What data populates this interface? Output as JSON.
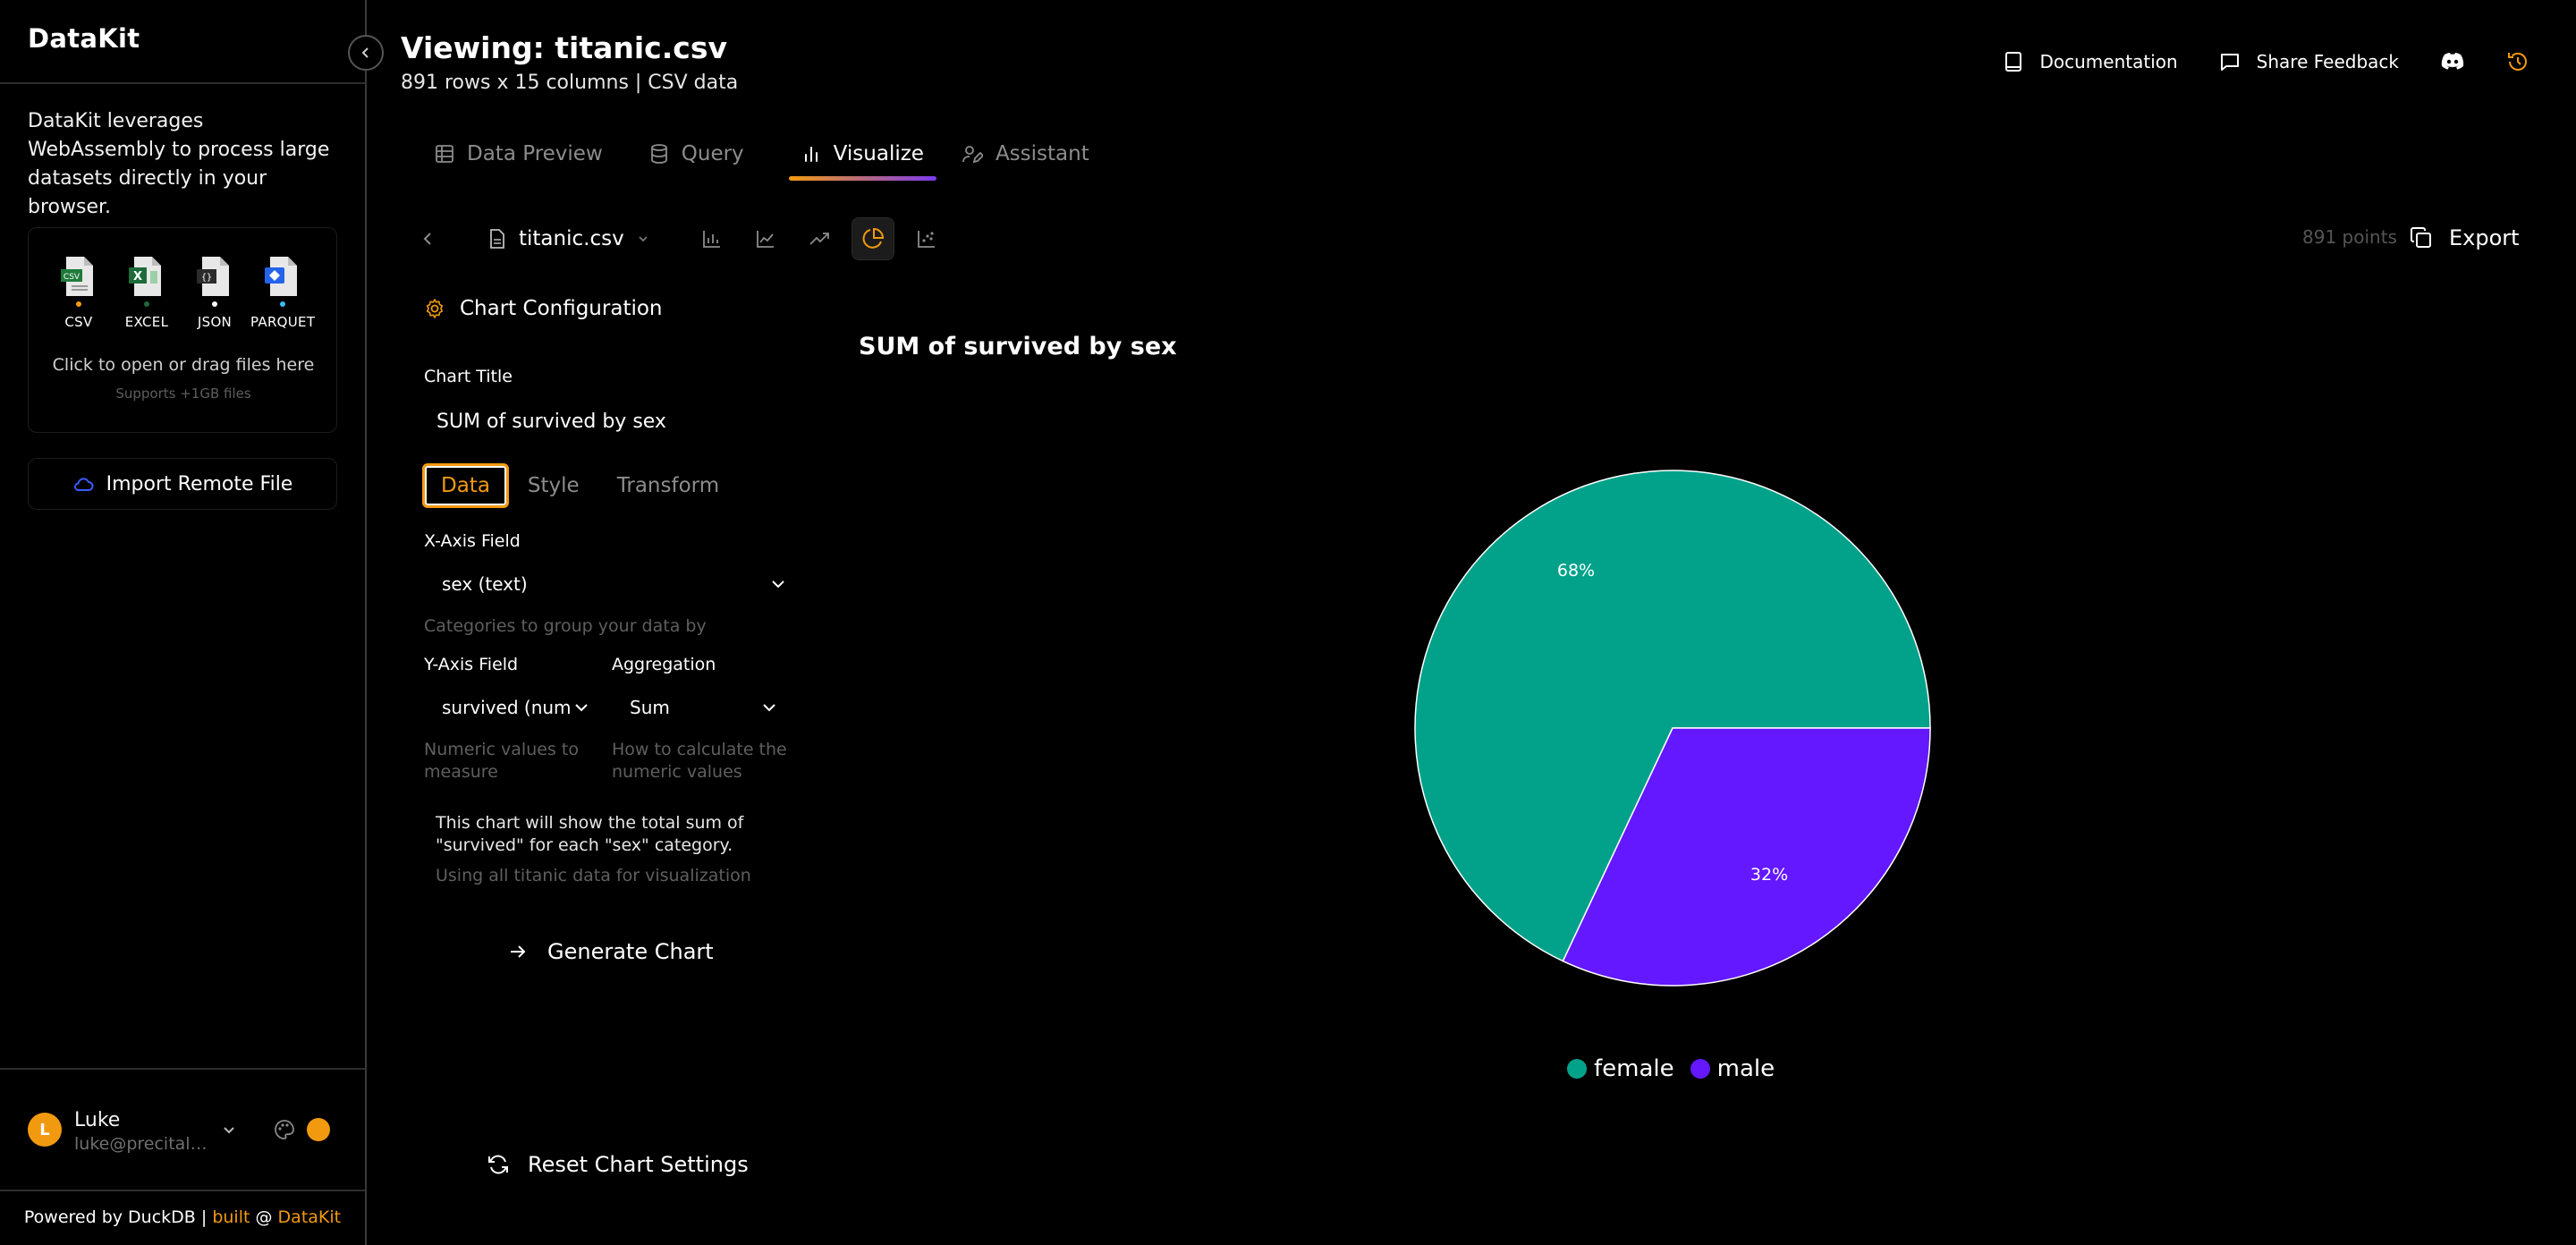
{
  "app": {
    "name": "DataKit"
  },
  "sidebar": {
    "description": "DataKit leverages WebAssembly to process large datasets directly in your browser.",
    "file_types": [
      {
        "label": "CSV",
        "badge": "CSV",
        "color": "#1f7a3c",
        "dot": "#f29a0f"
      },
      {
        "label": "EXCEL",
        "badge": "X",
        "color": "#1d6b3a",
        "dot": "#1d6b3a"
      },
      {
        "label": "JSON",
        "badge": "{}",
        "color": "#2b2b2b",
        "dot": "#ffffff"
      },
      {
        "label": "PARQUET",
        "badge": "◆",
        "color": "#2563eb",
        "dot": "#38bdf8"
      }
    ],
    "dropzone_text": "Click to open or drag files here",
    "dropzone_sub": "Supports +1GB files",
    "import_label": "Import Remote File",
    "user": {
      "initial": "L",
      "name": "Luke",
      "email": "luke@precital.c..."
    },
    "footer": {
      "prefix": "Powered by DuckDB | ",
      "built": "built",
      "at": " @ ",
      "brand": "DataKit"
    }
  },
  "header": {
    "title": "Viewing: titanic.csv",
    "subtitle": "891 rows x 15 columns | CSV data",
    "actions": {
      "documentation": "Documentation",
      "feedback": "Share Feedback"
    }
  },
  "tabs": [
    {
      "label": "Data Preview",
      "icon": "table-icon",
      "active": false
    },
    {
      "label": "Query",
      "icon": "database-icon",
      "active": false
    },
    {
      "label": "Visualize",
      "icon": "bar-chart-icon",
      "active": true
    },
    {
      "label": "Assistant",
      "icon": "assistant-icon",
      "active": false
    }
  ],
  "toolbar": {
    "file": "titanic.csv",
    "points": "891 points",
    "export": "Export"
  },
  "config": {
    "heading": "Chart Configuration",
    "chart_title_label": "Chart Title",
    "chart_title_value": "SUM of survived by sex",
    "subtabs": [
      "Data",
      "Style",
      "Transform"
    ],
    "x_label": "X-Axis Field",
    "x_value": "sex (text)",
    "x_help": "Categories to group your data by",
    "y_label": "Y-Axis Field",
    "y_value": "survived (num",
    "y_help": "Numeric values to measure",
    "agg_label": "Aggregation",
    "agg_value": "Sum",
    "agg_help": "How to calculate the numeric values",
    "summary": "This chart will show the total sum of \"survived\" for each \"sex\" category.",
    "summary_sub": "Using all titanic data for visualization",
    "generate": "Generate Chart",
    "reset": "Reset Chart Settings"
  },
  "chart_data": {
    "type": "pie",
    "title": "SUM of survived by sex",
    "categories": [
      "female",
      "male"
    ],
    "values": [
      68,
      32
    ],
    "labels": [
      "68%",
      "32%"
    ],
    "colors": [
      "#02a28a",
      "#6318ff"
    ],
    "legend": "bottom"
  }
}
